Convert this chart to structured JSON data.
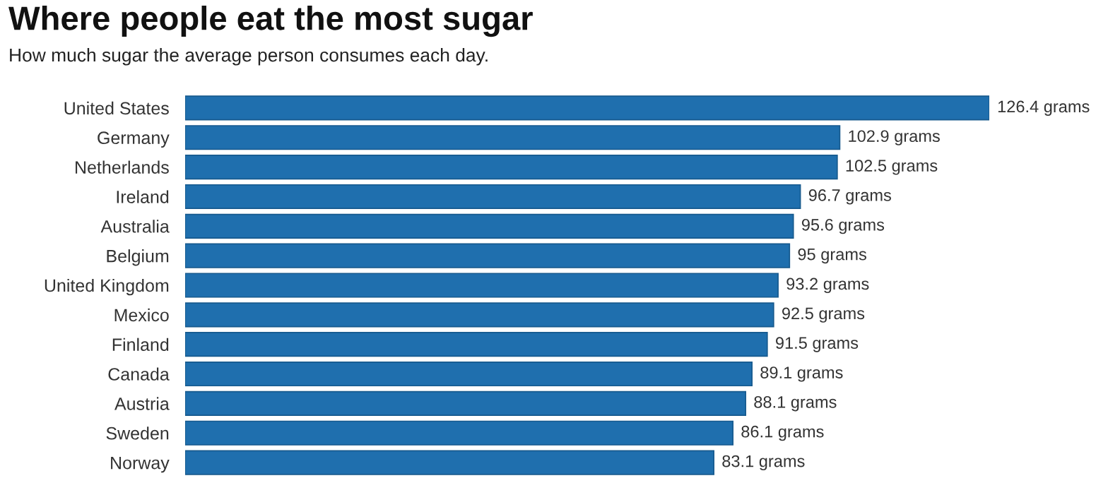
{
  "chart_data": {
    "type": "bar",
    "orientation": "horizontal",
    "title": "Where people eat the most sugar",
    "subtitle": "How much sugar the average person consumes each day.",
    "categories": [
      "United States",
      "Germany",
      "Netherlands",
      "Ireland",
      "Australia",
      "Belgium",
      "United Kingdom",
      "Mexico",
      "Finland",
      "Canada",
      "Austria",
      "Sweden",
      "Norway"
    ],
    "values": [
      126.4,
      102.9,
      102.5,
      96.7,
      95.6,
      95,
      93.2,
      92.5,
      91.5,
      89.1,
      88.1,
      86.1,
      83.1
    ],
    "value_labels": [
      "126.4 grams",
      "102.9 grams",
      "102.5 grams",
      "96.7 grams",
      "95.6 grams",
      "95 grams",
      "93.2 grams",
      "92.5 grams",
      "91.5 grams",
      "89.1 grams",
      "88.1 grams",
      "86.1 grams",
      "83.1 grams"
    ],
    "color": "#1f6fae",
    "grid": false,
    "legend": false
  }
}
